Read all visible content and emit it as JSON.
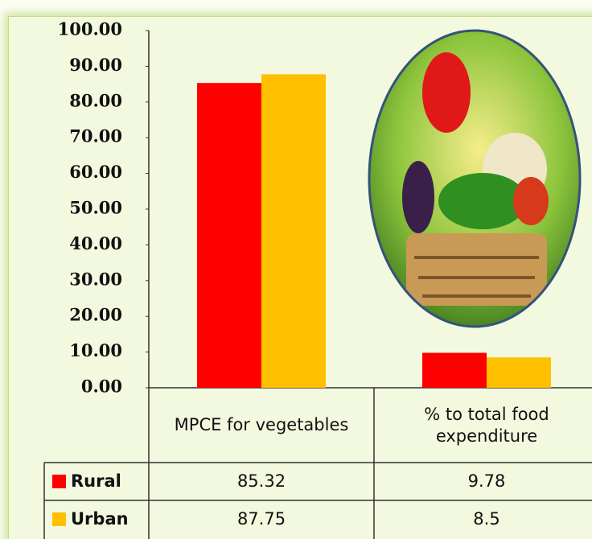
{
  "chart_data": {
    "type": "bar",
    "categories": [
      "MPCE for vegetables",
      "% to total food expenditure"
    ],
    "series": [
      {
        "name": "Rural",
        "color": "#ff0000",
        "values": [
          85.32,
          9.78
        ]
      },
      {
        "name": "Urban",
        "color": "#ffc000",
        "values": [
          87.75,
          8.5
        ]
      }
    ],
    "ylim": [
      0,
      100
    ],
    "yticks": [
      {
        "value": 0,
        "label": "0.00"
      },
      {
        "value": 10,
        "label": "10.00"
      },
      {
        "value": 20,
        "label": "20.00"
      },
      {
        "value": 30,
        "label": "30.00"
      },
      {
        "value": 40,
        "label": "40.00"
      },
      {
        "value": 50,
        "label": "50.00"
      },
      {
        "value": 60,
        "label": "60.00"
      },
      {
        "value": 70,
        "label": "70.00"
      },
      {
        "value": 80,
        "label": "80.00"
      },
      {
        "value": 90,
        "label": "90.00"
      },
      {
        "value": 100,
        "label": "100.00"
      }
    ],
    "grid": false
  }
}
